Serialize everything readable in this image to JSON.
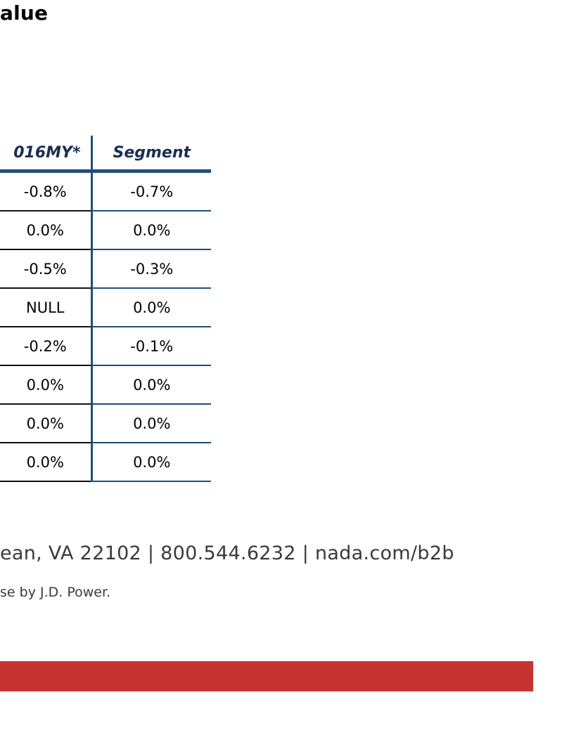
{
  "title": "alue",
  "table": {
    "headers": [
      "016MY*",
      "Segment"
    ],
    "rows": [
      [
        "-0.8%",
        "-0.7%"
      ],
      [
        "0.0%",
        "0.0%"
      ],
      [
        "-0.5%",
        "-0.3%"
      ],
      [
        "NULL",
        "0.0%"
      ],
      [
        "-0.2%",
        "-0.1%"
      ],
      [
        "0.0%",
        "0.0%"
      ],
      [
        "0.0%",
        "0.0%"
      ],
      [
        "0.0%",
        "0.0%"
      ]
    ]
  },
  "footer": {
    "contact_line": "ean, VA 22102 | 800.544.6232 | nada.com/b2b",
    "note": "se by J.D. Power."
  },
  "colors": {
    "header_text": "#1b2d52",
    "rule": "#1f4e79",
    "footer_bar": "#c73232"
  }
}
